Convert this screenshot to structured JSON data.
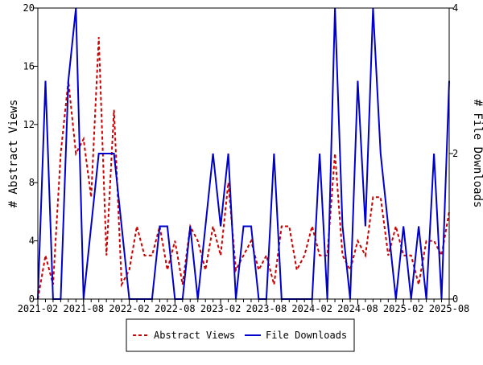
{
  "chart_data": {
    "type": "line",
    "x_tick_labels": [
      "2021-02",
      "2021-08",
      "2022-02",
      "2022-08",
      "2023-02",
      "2023-08",
      "2024-02",
      "2024-08",
      "2025-02",
      "2025-08"
    ],
    "ylabel": "# Abstract Views",
    "y2label": "# File Downloads",
    "ylim": [
      0,
      20
    ],
    "y2lim": [
      0,
      4
    ],
    "y_ticks": [
      0,
      4,
      8,
      12,
      16,
      20
    ],
    "y2_ticks": [
      0,
      2,
      4
    ],
    "x_start": "2021-02",
    "x_end": "2025-08",
    "legend_position": "bottom",
    "series": [
      {
        "name": "Abstract Views",
        "axis": "left",
        "color": "#cc0000",
        "style": "dashed",
        "values": [
          0,
          3,
          1,
          10,
          15,
          10,
          11,
          7,
          18,
          3,
          13,
          1,
          2,
          5,
          3,
          3,
          5,
          2,
          4,
          1,
          5,
          4,
          2,
          5,
          3,
          8,
          2,
          3,
          4,
          2,
          3,
          1,
          5,
          5,
          2,
          3,
          5,
          3,
          3,
          10,
          3,
          2,
          4,
          3,
          7,
          7,
          3,
          5,
          3,
          3,
          1,
          4,
          4,
          3,
          6
        ]
      },
      {
        "name": "File Downloads",
        "axis": "right",
        "color": "#0000cc",
        "style": "solid",
        "values": [
          0,
          3,
          0,
          0,
          3,
          4,
          0,
          1,
          2,
          2,
          2,
          1,
          0,
          0,
          0,
          0,
          1,
          1,
          0,
          0,
          1,
          0,
          1,
          2,
          1,
          2,
          0,
          1,
          1,
          0,
          0,
          2,
          0,
          0,
          0,
          0,
          0,
          2,
          0,
          4,
          1,
          0,
          3,
          1,
          4,
          2,
          1,
          0,
          1,
          0,
          1,
          0,
          2,
          0,
          3
        ]
      }
    ]
  }
}
